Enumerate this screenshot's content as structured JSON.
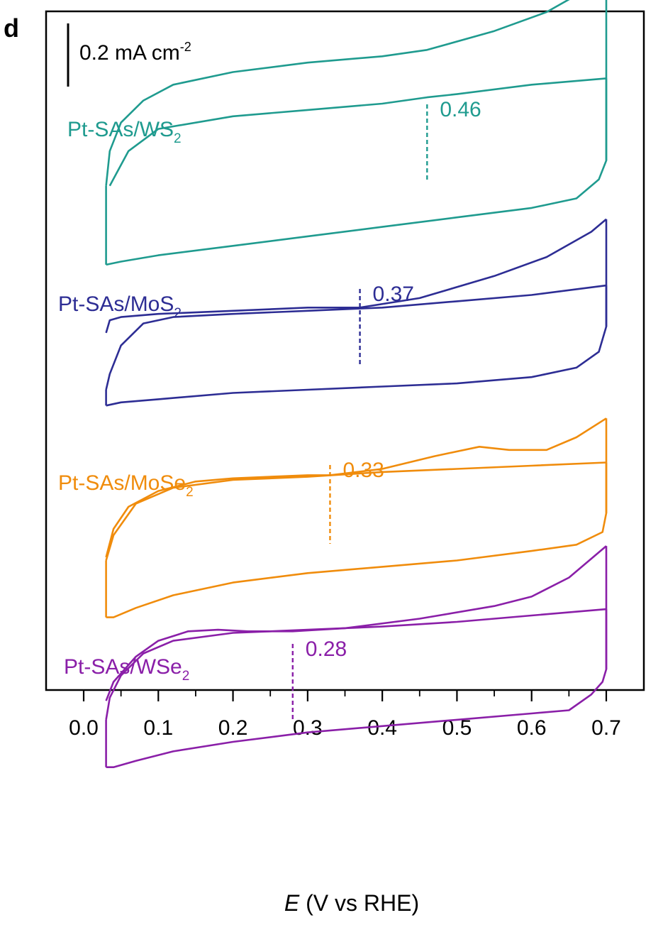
{
  "chart_data": {
    "type": "line",
    "panel_label": "d",
    "xlabel_italic": "E",
    "xlabel_rest": " (V vs RHE)",
    "ylabel": "",
    "xlim": [
      -0.05,
      0.75
    ],
    "x_ticks": [
      "0.0",
      "0.1",
      "0.2",
      "0.3",
      "0.4",
      "0.5",
      "0.6",
      "0.7"
    ],
    "scale_bar": {
      "text": "0.2 mA cm",
      "superscript": "-2",
      "value_mA_cm2": 0.2
    },
    "y_units": "mA cm-2 (offset, stacked)",
    "series": [
      {
        "name_main": "Pt-SAs/WS",
        "name_sub": "2",
        "color": "#1f9b8f",
        "onset_value": 0.46,
        "onset_label": "0.46",
        "forward": [
          [
            0.03,
            -0.06
          ],
          [
            0.035,
            0.05
          ],
          [
            0.05,
            0.14
          ],
          [
            0.08,
            0.21
          ],
          [
            0.12,
            0.26
          ],
          [
            0.2,
            0.3
          ],
          [
            0.3,
            0.33
          ],
          [
            0.4,
            0.35
          ],
          [
            0.46,
            0.37
          ],
          [
            0.55,
            0.43
          ],
          [
            0.62,
            0.49
          ],
          [
            0.68,
            0.57
          ],
          [
            0.7,
            0.61
          ]
        ],
        "reverse": [
          [
            0.7,
            0.28
          ],
          [
            0.6,
            0.26
          ],
          [
            0.5,
            0.23
          ],
          [
            0.46,
            0.22
          ],
          [
            0.4,
            0.2
          ],
          [
            0.3,
            0.18
          ],
          [
            0.2,
            0.16
          ],
          [
            0.1,
            0.12
          ],
          [
            0.06,
            0.05
          ],
          [
            0.035,
            -0.06
          ]
        ],
        "cathodic": [
          [
            0.7,
            0.02
          ],
          [
            0.69,
            -0.04
          ],
          [
            0.66,
            -0.1
          ],
          [
            0.6,
            -0.13
          ],
          [
            0.5,
            -0.16
          ],
          [
            0.4,
            -0.19
          ],
          [
            0.3,
            -0.22
          ],
          [
            0.2,
            -0.25
          ],
          [
            0.1,
            -0.28
          ],
          [
            0.05,
            -0.3
          ],
          [
            0.03,
            -0.31
          ]
        ]
      },
      {
        "name_main": "Pt-SAs/MoS",
        "name_sub": "2",
        "color": "#2d2d94",
        "onset_value": 0.37,
        "onset_label": "0.37",
        "forward": [
          [
            0.03,
            -0.02
          ],
          [
            0.035,
            0.02
          ],
          [
            0.05,
            0.03
          ],
          [
            0.1,
            0.04
          ],
          [
            0.2,
            0.05
          ],
          [
            0.3,
            0.06
          ],
          [
            0.37,
            0.06
          ],
          [
            0.45,
            0.09
          ],
          [
            0.55,
            0.16
          ],
          [
            0.62,
            0.22
          ],
          [
            0.68,
            0.3
          ],
          [
            0.7,
            0.34
          ]
        ],
        "reverse": [
          [
            0.7,
            0.13
          ],
          [
            0.6,
            0.1
          ],
          [
            0.5,
            0.08
          ],
          [
            0.4,
            0.06
          ],
          [
            0.3,
            0.05
          ],
          [
            0.2,
            0.04
          ],
          [
            0.12,
            0.03
          ],
          [
            0.08,
            0.01
          ],
          [
            0.05,
            -0.06
          ],
          [
            0.035,
            -0.15
          ],
          [
            0.03,
            -0.2
          ]
        ],
        "cathodic": [
          [
            0.7,
            0.0
          ],
          [
            0.69,
            -0.08
          ],
          [
            0.66,
            -0.13
          ],
          [
            0.6,
            -0.16
          ],
          [
            0.5,
            -0.18
          ],
          [
            0.4,
            -0.19
          ],
          [
            0.3,
            -0.2
          ],
          [
            0.2,
            -0.21
          ],
          [
            0.1,
            -0.23
          ],
          [
            0.05,
            -0.24
          ],
          [
            0.03,
            -0.25
          ]
        ]
      },
      {
        "name_main": "Pt-SAs/MoSe",
        "name_sub": "2",
        "color": "#f08c0c",
        "onset_value": 0.33,
        "onset_label": "0.33",
        "forward": [
          [
            0.03,
            -0.09
          ],
          [
            0.04,
            0.0
          ],
          [
            0.06,
            0.07
          ],
          [
            0.1,
            0.12
          ],
          [
            0.15,
            0.15
          ],
          [
            0.2,
            0.16
          ],
          [
            0.3,
            0.17
          ],
          [
            0.33,
            0.17
          ],
          [
            0.4,
            0.19
          ],
          [
            0.47,
            0.23
          ],
          [
            0.53,
            0.26
          ],
          [
            0.57,
            0.25
          ],
          [
            0.62,
            0.25
          ],
          [
            0.66,
            0.29
          ],
          [
            0.7,
            0.35
          ]
        ],
        "reverse": [
          [
            0.7,
            0.21
          ],
          [
            0.6,
            0.2
          ],
          [
            0.5,
            0.19
          ],
          [
            0.4,
            0.18
          ],
          [
            0.3,
            0.165
          ],
          [
            0.2,
            0.155
          ],
          [
            0.12,
            0.13
          ],
          [
            0.07,
            0.08
          ],
          [
            0.04,
            -0.02
          ],
          [
            0.03,
            -0.1
          ]
        ],
        "cathodic": [
          [
            0.7,
            0.05
          ],
          [
            0.695,
            -0.01
          ],
          [
            0.66,
            -0.05
          ],
          [
            0.6,
            -0.07
          ],
          [
            0.5,
            -0.1
          ],
          [
            0.4,
            -0.12
          ],
          [
            0.3,
            -0.14
          ],
          [
            0.2,
            -0.17
          ],
          [
            0.12,
            -0.21
          ],
          [
            0.07,
            -0.25
          ],
          [
            0.04,
            -0.28
          ],
          [
            0.03,
            -0.28
          ]
        ]
      },
      {
        "name_main": "Pt-SAs/WSe",
        "name_sub": "2",
        "color": "#8a1fa8",
        "onset_value": 0.28,
        "onset_label": "0.28",
        "forward": [
          [
            0.03,
            0.04
          ],
          [
            0.04,
            0.1
          ],
          [
            0.07,
            0.18
          ],
          [
            0.1,
            0.23
          ],
          [
            0.14,
            0.26
          ],
          [
            0.18,
            0.265
          ],
          [
            0.22,
            0.26
          ],
          [
            0.28,
            0.26
          ],
          [
            0.35,
            0.27
          ],
          [
            0.45,
            0.3
          ],
          [
            0.55,
            0.34
          ],
          [
            0.6,
            0.37
          ],
          [
            0.65,
            0.43
          ],
          [
            0.68,
            0.49
          ],
          [
            0.7,
            0.53
          ]
        ],
        "reverse": [
          [
            0.7,
            0.33
          ],
          [
            0.6,
            0.31
          ],
          [
            0.5,
            0.29
          ],
          [
            0.4,
            0.275
          ],
          [
            0.3,
            0.265
          ],
          [
            0.2,
            0.255
          ],
          [
            0.12,
            0.23
          ],
          [
            0.08,
            0.19
          ],
          [
            0.05,
            0.12
          ],
          [
            0.035,
            0.05
          ],
          [
            0.03,
            -0.02
          ]
        ],
        "cathodic": [
          [
            0.7,
            0.14
          ],
          [
            0.695,
            0.1
          ],
          [
            0.68,
            0.06
          ],
          [
            0.65,
            0.01
          ],
          [
            0.6,
            0.0
          ],
          [
            0.5,
            -0.02
          ],
          [
            0.4,
            -0.04
          ],
          [
            0.3,
            -0.06
          ],
          [
            0.2,
            -0.09
          ],
          [
            0.12,
            -0.12
          ],
          [
            0.07,
            -0.15
          ],
          [
            0.04,
            -0.17
          ],
          [
            0.03,
            -0.17
          ]
        ]
      }
    ]
  }
}
